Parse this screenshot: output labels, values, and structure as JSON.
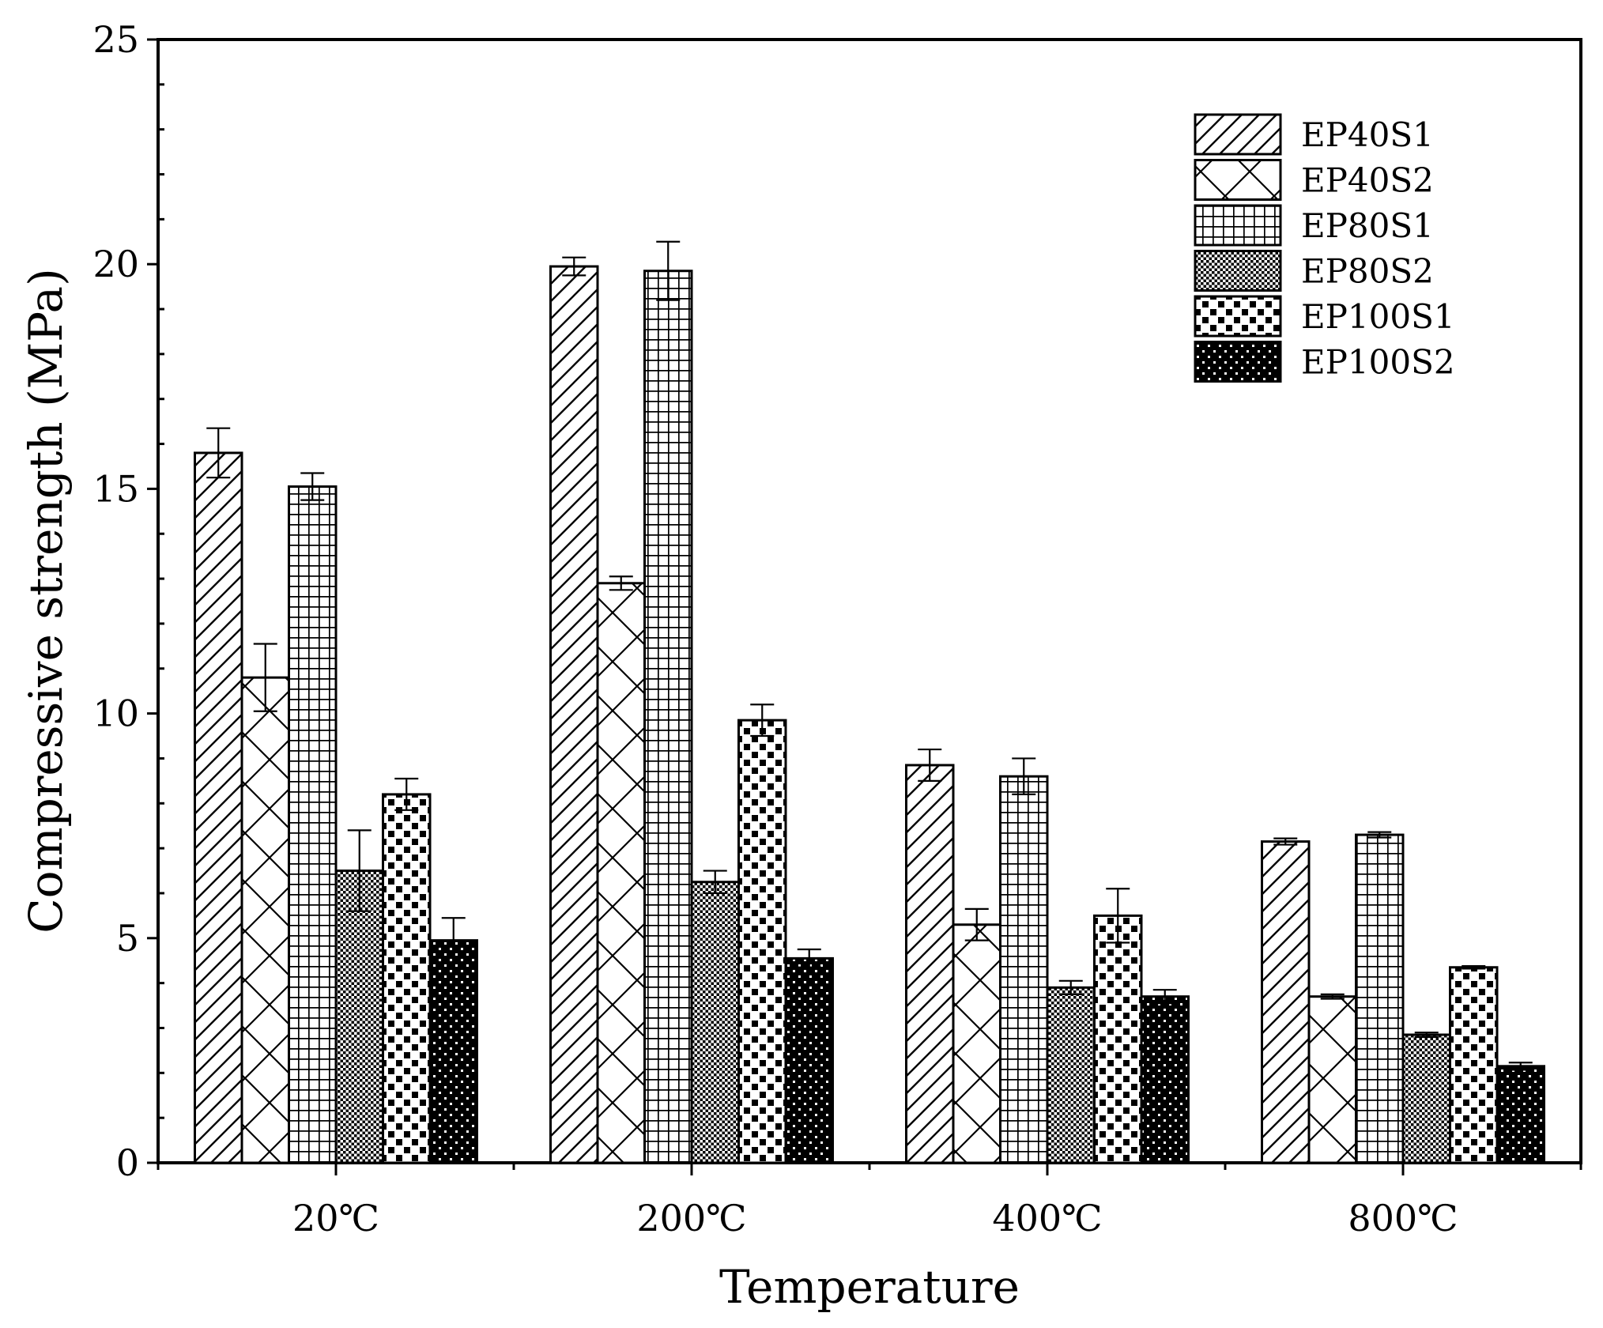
{
  "chart_data": {
    "type": "bar",
    "title": "",
    "xlabel": "Temperature",
    "ylabel": "Compressive strength (MPa)",
    "ylim": [
      0,
      25
    ],
    "yticks": [
      "0",
      "5",
      "10",
      "15",
      "20",
      "25"
    ],
    "yminor_step": 1,
    "categories": [
      "20℃",
      "200℃",
      "400℃",
      "800℃"
    ],
    "legend_position": "top-right",
    "series": [
      {
        "name": "EP40S1",
        "pattern": "diag-hatch",
        "values": [
          15.8,
          19.95,
          8.85,
          7.15
        ],
        "errors": [
          0.55,
          0.2,
          0.35,
          0.07
        ]
      },
      {
        "name": "EP40S2",
        "pattern": "cross-hatch",
        "values": [
          10.8,
          12.9,
          5.3,
          3.7
        ],
        "errors": [
          0.75,
          0.15,
          0.35,
          0.05
        ]
      },
      {
        "name": "EP80S1",
        "pattern": "grid",
        "values": [
          15.05,
          19.85,
          8.6,
          7.3
        ],
        "errors": [
          0.3,
          0.65,
          0.4,
          0.06
        ]
      },
      {
        "name": "EP80S2",
        "pattern": "dense-checker",
        "values": [
          6.5,
          6.25,
          3.9,
          2.85
        ],
        "errors": [
          0.9,
          0.25,
          0.15,
          0.05
        ]
      },
      {
        "name": "EP100S1",
        "pattern": "large-squares",
        "values": [
          8.2,
          9.85,
          5.5,
          4.35
        ],
        "errors": [
          0.35,
          0.35,
          0.6,
          0.03
        ]
      },
      {
        "name": "EP100S2",
        "pattern": "dark-dots",
        "values": [
          4.95,
          4.55,
          3.7,
          2.15
        ],
        "errors": [
          0.5,
          0.2,
          0.15,
          0.08
        ]
      }
    ]
  }
}
